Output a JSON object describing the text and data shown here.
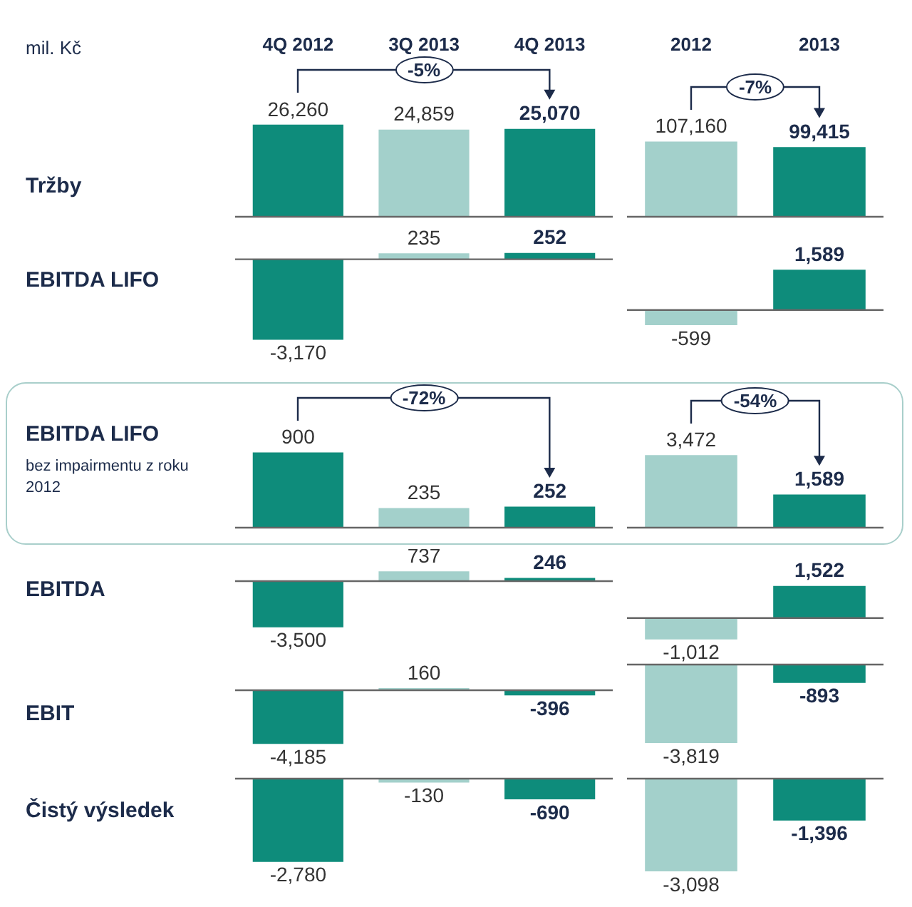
{
  "chart_data": [
    {
      "type": "bar",
      "ylabel": "Tržby",
      "categories": [
        "4Q 2012",
        "3Q 2013",
        "4Q 2013"
      ],
      "values": [
        26260,
        24859,
        25070
      ],
      "colors": [
        "#0e8c7b",
        "#a3d0cb",
        "#0e8c7b"
      ],
      "value_labels": [
        "26,260",
        "24,859",
        "25,070"
      ],
      "annotations": [
        "mil. Kč",
        "-5%"
      ],
      "tick_labels": "x"
    },
    {
      "type": "bar",
      "categories": [
        "2012",
        "2013"
      ],
      "values": [
        107160,
        99415
      ],
      "colors": [
        "#a3d0cb",
        "#0e8c7b"
      ],
      "value_labels": [
        "107,160",
        "99,415"
      ],
      "annotations": [
        "-7%"
      ],
      "tick_labels": "x"
    },
    {
      "type": "bar",
      "ylabel": "EBITDA LIFO",
      "categories": [
        null,
        null,
        null
      ],
      "values": [
        -3170,
        235,
        252
      ],
      "colors": [
        "#0e8c7b",
        "#a3d0cb",
        "#0e8c7b"
      ],
      "value_labels": [
        "-3,170",
        "235",
        "252"
      ],
      "tick_labels": false
    },
    {
      "type": "bar",
      "categories": [
        null,
        null
      ],
      "values": [
        -599,
        1589
      ],
      "colors": [
        "#a3d0cb",
        "#0e8c7b"
      ],
      "value_labels": [
        "-599",
        "1,589"
      ],
      "tick_labels": false
    },
    {
      "type": "bar",
      "ylabel": "EBITDA LIFO",
      "categories": [
        null,
        null,
        null
      ],
      "values": [
        900,
        235,
        252
      ],
      "colors": [
        "#0e8c7b",
        "#a3d0cb",
        "#0e8c7b"
      ],
      "value_labels": [
        "900",
        "235",
        "252"
      ],
      "annotations": [
        "bez impairmentu z roku 2012",
        "-72%"
      ],
      "tick_labels": false
    },
    {
      "type": "bar",
      "categories": [
        null,
        null
      ],
      "values": [
        3472,
        1589
      ],
      "colors": [
        "#a3d0cb",
        "#0e8c7b"
      ],
      "value_labels": [
        "3,472",
        "1,589"
      ],
      "annotations": [
        "-54%"
      ],
      "tick_labels": false
    },
    {
      "type": "bar",
      "ylabel": "EBITDA",
      "categories": [
        null,
        null,
        null
      ],
      "values": [
        -3500,
        737,
        246
      ],
      "colors": [
        "#0e8c7b",
        "#a3d0cb",
        "#0e8c7b"
      ],
      "value_labels": [
        "-3,500",
        "737",
        "246"
      ],
      "tick_labels": false
    },
    {
      "type": "bar",
      "categories": [
        null,
        null
      ],
      "values": [
        -1012,
        1522
      ],
      "colors": [
        "#a3d0cb",
        "#0e8c7b"
      ],
      "value_labels": [
        "-1,012",
        "1,522"
      ],
      "tick_labels": false
    },
    {
      "type": "bar",
      "ylabel": "EBIT",
      "categories": [
        null,
        null,
        null
      ],
      "values": [
        -4185,
        160,
        -396
      ],
      "colors": [
        "#0e8c7b",
        "#a3d0cb",
        "#0e8c7b"
      ],
      "value_labels": [
        "-4,185",
        "160",
        "-396"
      ],
      "tick_labels": false
    },
    {
      "type": "bar",
      "categories": [
        null,
        null
      ],
      "values": [
        -3819,
        -893
      ],
      "colors": [
        "#a3d0cb",
        "#0e8c7b"
      ],
      "value_labels": [
        "-3,819",
        "-893"
      ],
      "tick_labels": false
    },
    {
      "type": "bar",
      "ylabel": "Čistý výsledek",
      "categories": [
        null,
        null,
        null
      ],
      "values": [
        -2780,
        -130,
        -690
      ],
      "colors": [
        "#0e8c7b",
        "#a3d0cb",
        "#0e8c7b"
      ],
      "value_labels": [
        "-2,780",
        "-130",
        "-690"
      ],
      "tick_labels": false
    },
    {
      "type": "bar",
      "categories": [
        null,
        null
      ],
      "values": [
        -3098,
        -1396
      ],
      "colors": [
        "#a3d0cb",
        "#0e8c7b"
      ],
      "value_labels": [
        "-3,098",
        "-1,396"
      ],
      "tick_labels": false
    }
  ]
}
